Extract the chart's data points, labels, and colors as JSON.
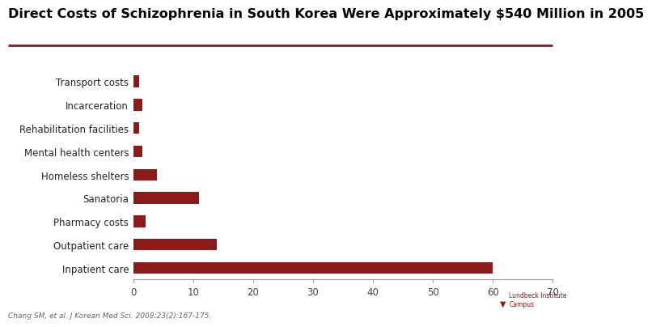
{
  "title": "Direct Costs of Schizophrenia in South Korea Were Approximately $540 Million in 2005",
  "categories": [
    "Inpatient care",
    "Outpatient care",
    "Pharmacy costs",
    "Sanatoria",
    "Homeless shelters",
    "Mental health centers",
    "Rehabilitation facilities",
    "Incarceration",
    "Transport costs"
  ],
  "values": [
    60,
    14,
    2,
    11,
    4,
    1.5,
    1,
    1.5,
    1
  ],
  "bar_color": "#8B1A1A",
  "xlim": [
    0,
    70
  ],
  "xticks": [
    0,
    10,
    20,
    30,
    40,
    50,
    60,
    70
  ],
  "title_fontsize": 11.5,
  "tick_fontsize": 8.5,
  "label_fontsize": 8.5,
  "footnote": "Chang SM, et al. J Korean Med Sci. 2008;23(2):167-175.",
  "footnote_fontsize": 6.5,
  "title_color": "#000000",
  "rule_color": "#8B1A1A",
  "background_color": "#FFFFFF"
}
